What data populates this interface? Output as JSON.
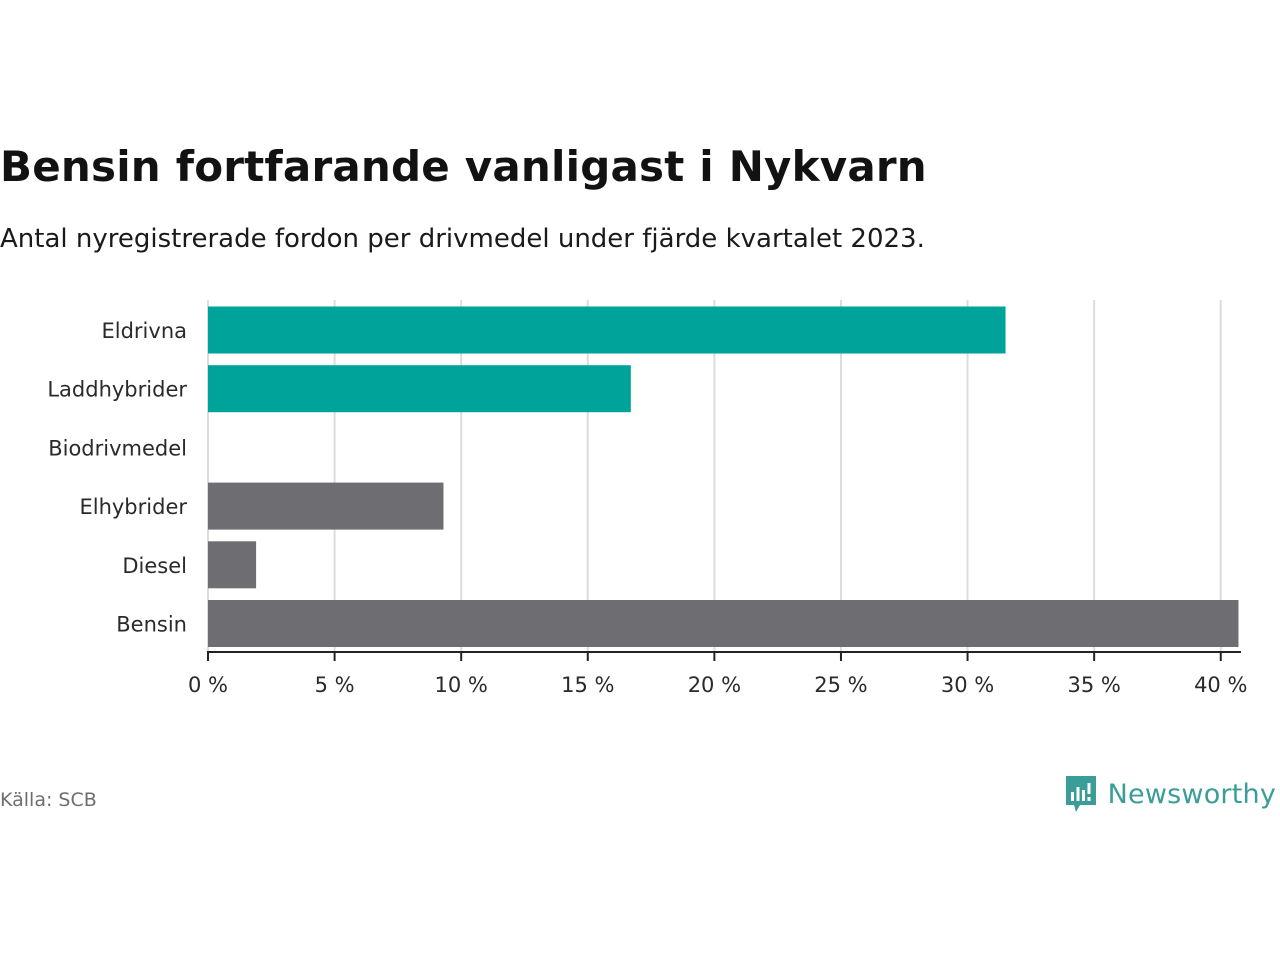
{
  "title": "Bensin fortfarande vanligast i Nykvarn",
  "subtitle": "Antal nyregistrerade fordon per drivmedel under fjärde kvartalet 2023.",
  "source": "Källa: SCB",
  "brand": "Newsworthy",
  "colors": {
    "highlight": "#00a39a",
    "base": "#6e6d72",
    "grid": "#dcdcdc",
    "brand": "#3b9d97"
  },
  "chart_data": {
    "type": "bar",
    "orientation": "horizontal",
    "title": "Bensin fortfarande vanligast i Nykvarn",
    "xlabel": "",
    "ylabel": "",
    "xlim": [
      0,
      40.8
    ],
    "ticks": [
      0,
      5,
      10,
      15,
      20,
      25,
      30,
      35,
      40
    ],
    "tick_labels": [
      "0 %",
      "5 %",
      "10 %",
      "15 %",
      "20 %",
      "25 %",
      "30 %",
      "35 %",
      "40 %"
    ],
    "grid": true,
    "categories": [
      "Eldrivna",
      "Laddhybrider",
      "Biodrivmedel",
      "Elhybrider",
      "Diesel",
      "Bensin"
    ],
    "values": [
      31.5,
      16.7,
      0,
      9.3,
      1.9,
      40.7
    ],
    "highlighted": [
      true,
      true,
      false,
      false,
      false,
      false
    ]
  }
}
